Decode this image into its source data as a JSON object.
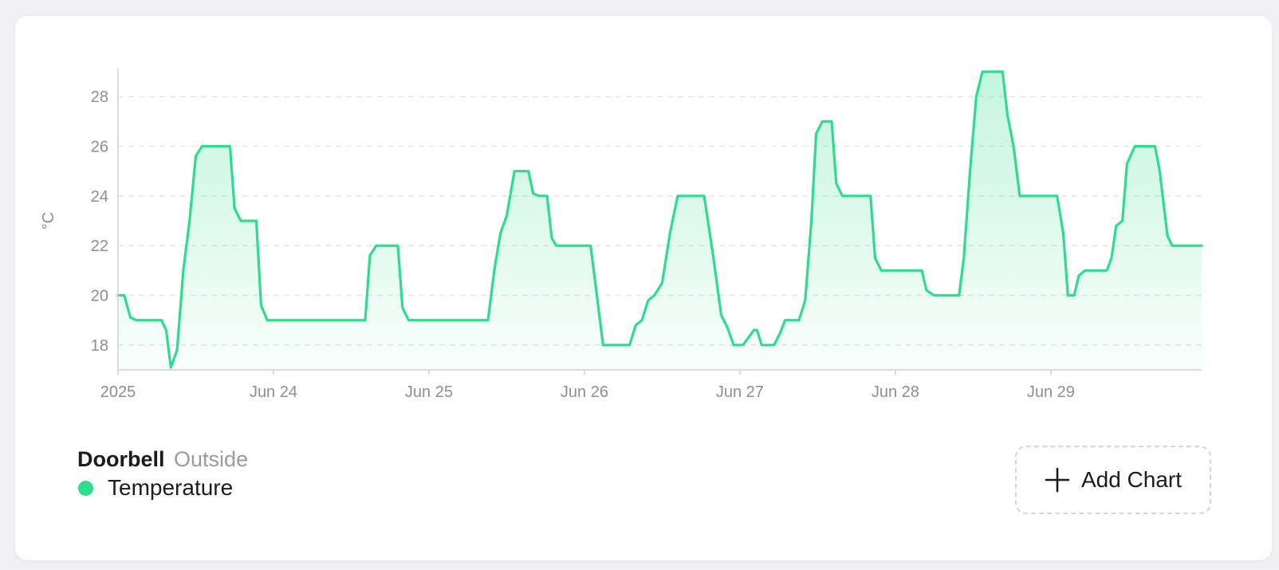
{
  "legend": {
    "device_name": "Doorbell",
    "room": "Outside",
    "series_label": "Temperature",
    "series_color": "#2ddc8c"
  },
  "add_chart": {
    "label": "Add Chart",
    "icon": "plus-icon"
  },
  "chart_data": {
    "type": "area",
    "ylabel": "°C",
    "ylim": [
      17,
      29
    ],
    "yticks": [
      18,
      20,
      22,
      24,
      26,
      28
    ],
    "xlim": [
      0,
      6.97
    ],
    "xticks": [
      {
        "x": 0,
        "label": "2025"
      },
      {
        "x": 1,
        "label": "Jun 24"
      },
      {
        "x": 2,
        "label": "Jun 25"
      },
      {
        "x": 3,
        "label": "Jun 26"
      },
      {
        "x": 4,
        "label": "Jun 27"
      },
      {
        "x": 5,
        "label": "Jun 28"
      },
      {
        "x": 6,
        "label": "Jun 29"
      }
    ],
    "grid": true,
    "series": [
      {
        "name": "Temperature",
        "color": "#2ddc8c",
        "points": [
          [
            0.0,
            20
          ],
          [
            0.04,
            20
          ],
          [
            0.08,
            19.1
          ],
          [
            0.12,
            19
          ],
          [
            0.28,
            19
          ],
          [
            0.31,
            18.6
          ],
          [
            0.34,
            17.1
          ],
          [
            0.38,
            17.8
          ],
          [
            0.42,
            21
          ],
          [
            0.46,
            23
          ],
          [
            0.5,
            25.6
          ],
          [
            0.54,
            26
          ],
          [
            0.72,
            26
          ],
          [
            0.75,
            23.5
          ],
          [
            0.79,
            23
          ],
          [
            0.89,
            23
          ],
          [
            0.92,
            19.6
          ],
          [
            0.96,
            19
          ],
          [
            1.59,
            19
          ],
          [
            1.62,
            21.6
          ],
          [
            1.66,
            22
          ],
          [
            1.8,
            22
          ],
          [
            1.83,
            19.5
          ],
          [
            1.87,
            19
          ],
          [
            2.38,
            19
          ],
          [
            2.42,
            21
          ],
          [
            2.46,
            22.5
          ],
          [
            2.5,
            23.2
          ],
          [
            2.55,
            25
          ],
          [
            2.64,
            25
          ],
          [
            2.67,
            24.1
          ],
          [
            2.71,
            24
          ],
          [
            2.76,
            24
          ],
          [
            2.79,
            22.3
          ],
          [
            2.82,
            22
          ],
          [
            3.04,
            22
          ],
          [
            3.07,
            20.5
          ],
          [
            3.12,
            18
          ],
          [
            3.29,
            18
          ],
          [
            3.33,
            18.8
          ],
          [
            3.37,
            19
          ],
          [
            3.41,
            19.8
          ],
          [
            3.45,
            20
          ],
          [
            3.5,
            20.5
          ],
          [
            3.55,
            22.5
          ],
          [
            3.6,
            24
          ],
          [
            3.77,
            24
          ],
          [
            3.83,
            21.5
          ],
          [
            3.88,
            19.2
          ],
          [
            3.92,
            18.7
          ],
          [
            3.96,
            18
          ],
          [
            4.02,
            18
          ],
          [
            4.09,
            18.6
          ],
          [
            4.11,
            18.6
          ],
          [
            4.14,
            18
          ],
          [
            4.22,
            18
          ],
          [
            4.26,
            18.5
          ],
          [
            4.29,
            19
          ],
          [
            4.38,
            19
          ],
          [
            4.42,
            19.8
          ],
          [
            4.46,
            23
          ],
          [
            4.49,
            26.5
          ],
          [
            4.53,
            27
          ],
          [
            4.59,
            27
          ],
          [
            4.62,
            24.5
          ],
          [
            4.66,
            24
          ],
          [
            4.84,
            24
          ],
          [
            4.87,
            21.5
          ],
          [
            4.91,
            21
          ],
          [
            5.17,
            21
          ],
          [
            5.2,
            20.2
          ],
          [
            5.25,
            20
          ],
          [
            5.41,
            20
          ],
          [
            5.44,
            21.5
          ],
          [
            5.48,
            25
          ],
          [
            5.52,
            28
          ],
          [
            5.56,
            29
          ],
          [
            5.69,
            29
          ],
          [
            5.72,
            27.3
          ],
          [
            5.76,
            26
          ],
          [
            5.8,
            24
          ],
          [
            6.04,
            24
          ],
          [
            6.08,
            22.5
          ],
          [
            6.11,
            20
          ],
          [
            6.15,
            20
          ],
          [
            6.18,
            20.8
          ],
          [
            6.22,
            21
          ],
          [
            6.36,
            21
          ],
          [
            6.39,
            21.5
          ],
          [
            6.42,
            22.8
          ],
          [
            6.46,
            23
          ],
          [
            6.49,
            25.3
          ],
          [
            6.54,
            26
          ],
          [
            6.67,
            26
          ],
          [
            6.7,
            25
          ],
          [
            6.75,
            22.4
          ],
          [
            6.78,
            22
          ],
          [
            6.97,
            22
          ]
        ]
      }
    ]
  }
}
